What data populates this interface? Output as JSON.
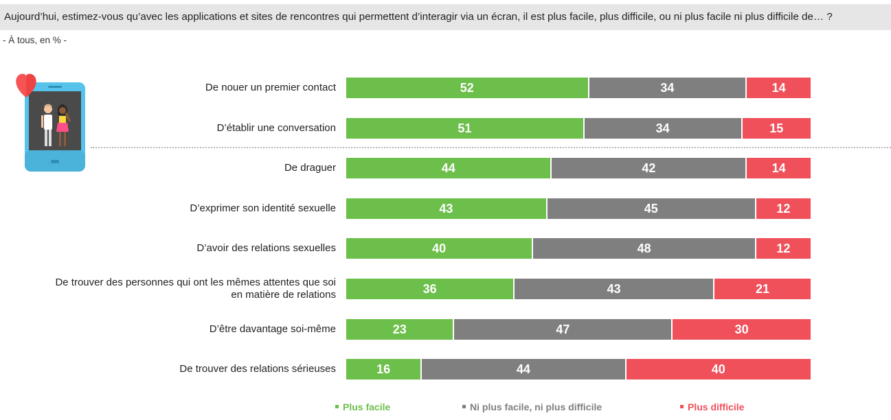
{
  "header": {
    "question": "Aujourd’hui, estimez-vous qu’avec les applications et sites de rencontres qui permettent d’interagir via un écran, il est plus facile, plus difficile, ou ni plus facile ni plus difficile de… ?",
    "subtitle": "- À tous, en % -"
  },
  "icon": "phone-couple-heart-icon",
  "colors": {
    "plus_facile": "#6cbf4a",
    "neutre": "#7f7f7f",
    "plus_difficile": "#f0505a"
  },
  "chart_data": {
    "type": "bar",
    "orientation": "horizontal",
    "stacked": true,
    "categories": [
      "De nouer un premier contact",
      "D’établir une conversation",
      "De draguer",
      "D’exprimer son identité sexuelle",
      "D’avoir des relations sexuelles",
      "De trouver des personnes qui ont les mêmes attentes que soi en matière de relations",
      "D’être davantage soi-même",
      "De trouver des relations sérieuses"
    ],
    "series": [
      {
        "name": "Plus facile",
        "color": "#6cbf4a",
        "values": [
          52,
          51,
          44,
          43,
          40,
          36,
          23,
          16
        ]
      },
      {
        "name": "Ni plus facile, ni plus difficile",
        "color": "#7f7f7f",
        "values": [
          34,
          34,
          42,
          45,
          48,
          43,
          47,
          44
        ]
      },
      {
        "name": "Plus difficile",
        "color": "#f0505a",
        "values": [
          14,
          15,
          14,
          12,
          12,
          21,
          30,
          40
        ]
      }
    ],
    "xlim": [
      0,
      100
    ],
    "legend_position": "bottom"
  }
}
